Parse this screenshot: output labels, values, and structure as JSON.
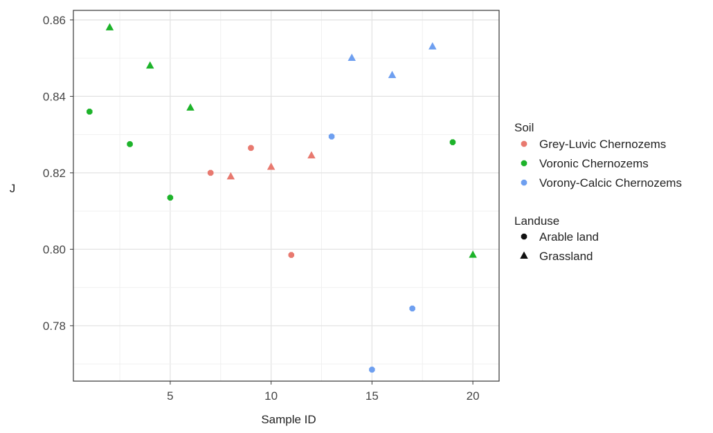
{
  "chart_data": {
    "type": "scatter",
    "title": "",
    "xlabel": "Sample ID",
    "ylabel": "J",
    "xlim": [
      0.2,
      21.3
    ],
    "ylim": [
      0.7655,
      0.8625
    ],
    "x_ticks": [
      5,
      10,
      15,
      20
    ],
    "x_tick_labels": [
      "5",
      "10",
      "15",
      "20"
    ],
    "y_ticks": [
      0.78,
      0.8,
      0.82,
      0.84,
      0.86
    ],
    "y_tick_labels": [
      "0.78",
      "0.80",
      "0.82",
      "0.84",
      "0.86"
    ],
    "grid": true,
    "legend_position": "right",
    "soil_legend": {
      "title": "Soil",
      "items": [
        {
          "label": "Grey-Luvic Chernozems",
          "color": "#e8796f"
        },
        {
          "label": "Voronic Chernozems",
          "color": "#1db32a"
        },
        {
          "label": "Vorony-Calcic Chernozems",
          "color": "#6e9ff0"
        }
      ]
    },
    "landuse_legend": {
      "title": "Landuse",
      "items": [
        {
          "label": "Arable land",
          "shape": "circle"
        },
        {
          "label": "Grassland",
          "shape": "triangle"
        }
      ]
    },
    "points": [
      {
        "x": 1,
        "y": 0.836,
        "soil": "Voronic Chernozems",
        "landuse": "Arable land"
      },
      {
        "x": 2,
        "y": 0.858,
        "soil": "Voronic Chernozems",
        "landuse": "Grassland"
      },
      {
        "x": 3,
        "y": 0.8275,
        "soil": "Voronic Chernozems",
        "landuse": "Arable land"
      },
      {
        "x": 4,
        "y": 0.848,
        "soil": "Voronic Chernozems",
        "landuse": "Grassland"
      },
      {
        "x": 5,
        "y": 0.8135,
        "soil": "Voronic Chernozems",
        "landuse": "Arable land"
      },
      {
        "x": 6,
        "y": 0.837,
        "soil": "Voronic Chernozems",
        "landuse": "Grassland"
      },
      {
        "x": 7,
        "y": 0.82,
        "soil": "Grey-Luvic Chernozems",
        "landuse": "Arable land"
      },
      {
        "x": 8,
        "y": 0.819,
        "soil": "Grey-Luvic Chernozems",
        "landuse": "Grassland"
      },
      {
        "x": 9,
        "y": 0.8265,
        "soil": "Grey-Luvic Chernozems",
        "landuse": "Arable land"
      },
      {
        "x": 10,
        "y": 0.8215,
        "soil": "Grey-Luvic Chernozems",
        "landuse": "Grassland"
      },
      {
        "x": 11,
        "y": 0.7985,
        "soil": "Grey-Luvic Chernozems",
        "landuse": "Arable land"
      },
      {
        "x": 12,
        "y": 0.8245,
        "soil": "Grey-Luvic Chernozems",
        "landuse": "Grassland"
      },
      {
        "x": 13,
        "y": 0.8295,
        "soil": "Vorony-Calcic Chernozems",
        "landuse": "Arable land"
      },
      {
        "x": 14,
        "y": 0.85,
        "soil": "Vorony-Calcic Chernozems",
        "landuse": "Grassland"
      },
      {
        "x": 15,
        "y": 0.7685,
        "soil": "Vorony-Calcic Chernozems",
        "landuse": "Arable land"
      },
      {
        "x": 16,
        "y": 0.8455,
        "soil": "Vorony-Calcic Chernozems",
        "landuse": "Grassland"
      },
      {
        "x": 17,
        "y": 0.7845,
        "soil": "Vorony-Calcic Chernozems",
        "landuse": "Arable land"
      },
      {
        "x": 18,
        "y": 0.853,
        "soil": "Vorony-Calcic Chernozems",
        "landuse": "Grassland"
      },
      {
        "x": 19,
        "y": 0.828,
        "soil": "Voronic Chernozems",
        "landuse": "Arable land"
      },
      {
        "x": 20,
        "y": 0.7985,
        "soil": "Voronic Chernozems",
        "landuse": "Grassland"
      }
    ]
  }
}
